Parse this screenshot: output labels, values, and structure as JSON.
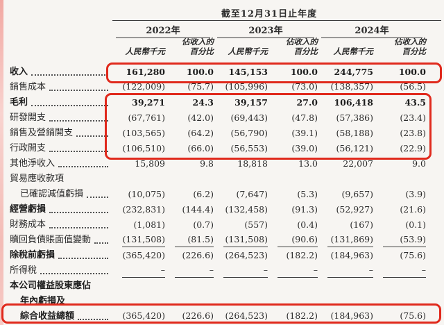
{
  "page": {
    "background": "#f7f5f2",
    "highlight_color": "#e0291c",
    "edge_tint": "#f2a8a2"
  },
  "table": {
    "period_header": "截至12月31日止年度",
    "years": [
      {
        "label": "2022年",
        "amount_header": "人民幣千元",
        "pct_line1": "佔收入的",
        "pct_line2": "百分比"
      },
      {
        "label": "2023年",
        "amount_header": "人民幣千元",
        "pct_line1": "佔收入的",
        "pct_line2": "百分比"
      },
      {
        "label": "2024年",
        "amount_header": "人民幣千元",
        "pct_line1": "佔收入的",
        "pct_line2": "百分比"
      }
    ],
    "rows": [
      {
        "label": "收入",
        "values": [
          "161,280",
          "100.0",
          "145,153",
          "100.0",
          "244,775",
          "100.0"
        ]
      },
      {
        "label": "銷售成本",
        "values": [
          "(122,009)",
          "(75.7)",
          "(105,996)",
          "(73.0)",
          "(138,357)",
          "(56.5)"
        ]
      },
      {
        "label": "毛利",
        "values": [
          "39,271",
          "24.3",
          "39,157",
          "27.0",
          "106,418",
          "43.5"
        ]
      },
      {
        "label": "研發開支",
        "values": [
          "(67,761)",
          "(42.0)",
          "(69,443)",
          "(47.8)",
          "(57,386)",
          "(23.4)"
        ]
      },
      {
        "label": "銷售及營銷開支",
        "values": [
          "(103,565)",
          "(64.2)",
          "(56,790)",
          "(39.1)",
          "(58,188)",
          "(23.8)"
        ]
      },
      {
        "label": "行政開支",
        "values": [
          "(106,510)",
          "(66.0)",
          "(56,553)",
          "(39.0)",
          "(56,121)",
          "(22.9)"
        ]
      },
      {
        "label": "其他淨收入",
        "values": [
          "15,809",
          "9.8",
          "18,818",
          "13.0",
          "22,007",
          "9.0"
        ]
      },
      {
        "label": "貿易應收款項",
        "values": []
      },
      {
        "label": "已確認減值虧損",
        "values": [
          "(10,075)",
          "(6.2)",
          "(7,647)",
          "(5.3)",
          "(9,657)",
          "(3.9)"
        ]
      },
      {
        "label": "經營虧損",
        "values": [
          "(232,831)",
          "(144.4)",
          "(132,458)",
          "(91.3)",
          "(52,927)",
          "(21.6)"
        ]
      },
      {
        "label": "財務成本",
        "values": [
          "(1,081)",
          "(0.7)",
          "(557)",
          "(0.4)",
          "(167)",
          "(0.1)"
        ]
      },
      {
        "label": "贖回負債賬面值變動",
        "values": [
          "(131,508)",
          "(81.5)",
          "(131,508)",
          "(90.6)",
          "(131,869)",
          "(53.9)"
        ]
      },
      {
        "label": "除稅前虧損",
        "values": [
          "(365,420)",
          "(226.6)",
          "(264,523)",
          "(182.2)",
          "(184,963)",
          "(75.6)"
        ]
      },
      {
        "label": "所得稅",
        "values": [
          "–",
          "–",
          "–",
          "–",
          "–",
          "–"
        ]
      },
      {
        "label": "本公司權益股東應佔",
        "values": []
      },
      {
        "label": "年內虧損及",
        "values": []
      },
      {
        "label": "綜合收益總額",
        "values": [
          "(365,420)",
          "(226.6)",
          "(264,523)",
          "(182.2)",
          "(184,963)",
          "(75.6)"
        ]
      }
    ]
  }
}
